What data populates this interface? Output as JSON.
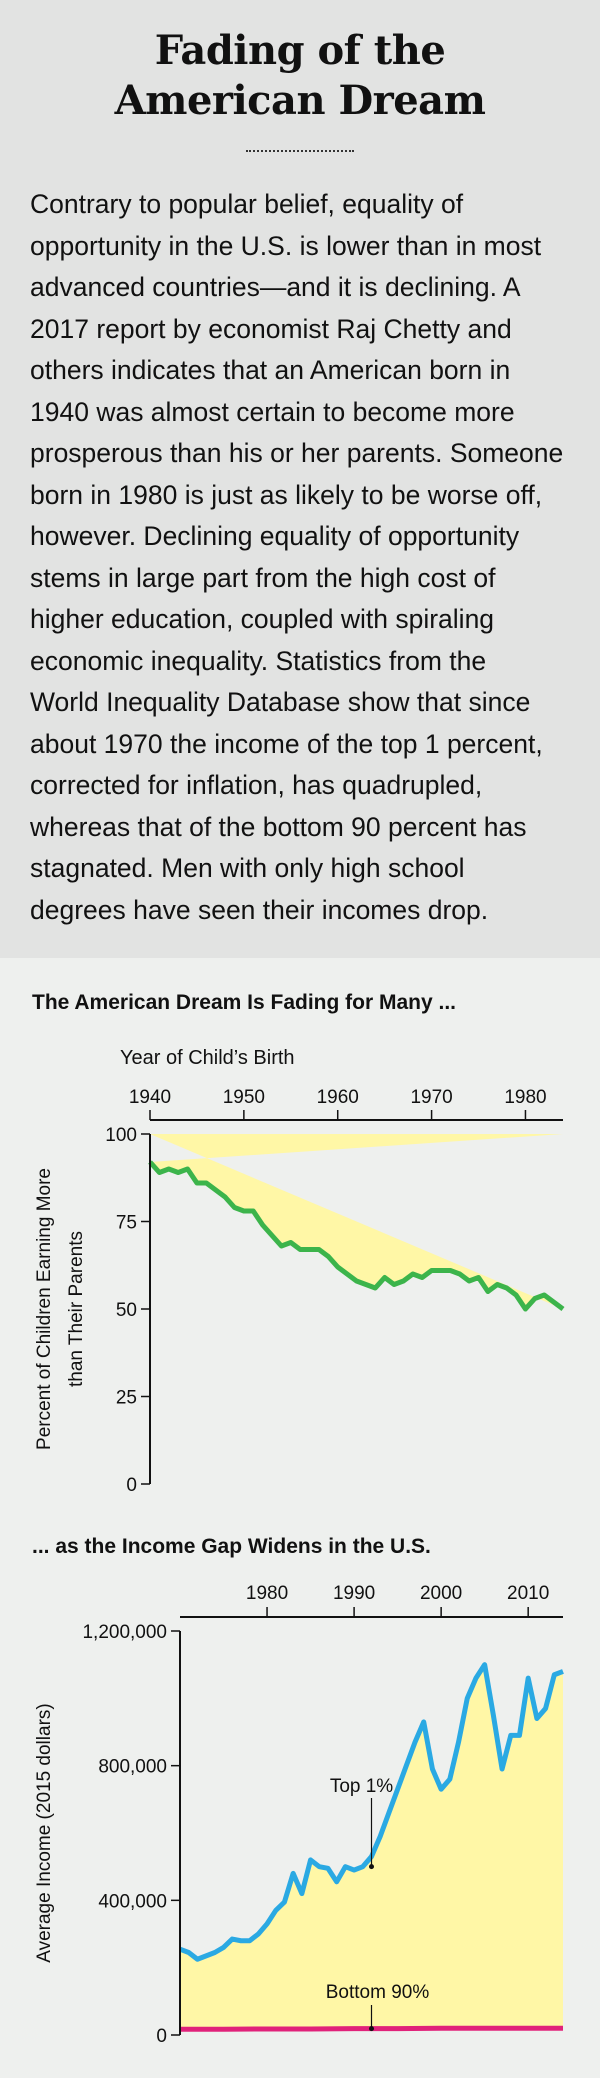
{
  "title_line1": "Fading of the",
  "title_line2": "American Dream",
  "body_lines": [
    "Contrary to popular belief, equality of",
    "opportunity in the U.S. is lower than in most",
    "advanced countries—and it is declining. A",
    "2017 report by economist Raj Chetty and",
    "others indicates that an American born in",
    "1940 was almost certain to become more",
    "prosperous than his or her parents. Someone",
    "born in 1980 is just as likely to be worse off,",
    "however. Declining equality of opportunity",
    "stems in large part from the high cost of",
    "higher education, coupled with spiraling",
    "economic inequality. Statistics from the",
    "World Inequality Database show that since",
    "about 1970 the income of the top 1 percent,",
    "corrected for inflation, has quadrupled,",
    "whereas that of the bottom 90 percent has",
    "stagnated. Men with only high school",
    "degrees have seen their incomes drop."
  ],
  "colors": {
    "background": "#eef0ee",
    "intro_background": "#e2e3e2",
    "fill": "#fff7a6",
    "line_green": "#3cb44b",
    "line_blue": "#2aa9e3",
    "line_magenta": "#e0227a"
  },
  "chart_data": [
    {
      "type": "area",
      "title": "The American Dream Is Fading for Many ...",
      "xlabel": "Year of Child’s Birth",
      "ylabel_line1": "Percent of Children Earning More",
      "ylabel_line2": "than Their Parents",
      "xlim": [
        1940,
        1984
      ],
      "ylim": [
        0,
        100
      ],
      "x_ticks": [
        1940,
        1950,
        1960,
        1970,
        1980
      ],
      "y_ticks": [
        0,
        25,
        50,
        75,
        100
      ],
      "x_tick_labels": [
        "1940",
        "1950",
        "1960",
        "1970",
        "1980"
      ],
      "y_tick_labels": [
        "0",
        "25",
        "50",
        "75",
        "100"
      ],
      "grid": false,
      "series": [
        {
          "x": [
            1940,
            1941,
            1942,
            1943,
            1944,
            1945,
            1946,
            1947,
            1948,
            1949,
            1950,
            1951,
            1952,
            1953,
            1954,
            1955,
            1956,
            1957,
            1958,
            1959,
            1960,
            1961,
            1962,
            1963,
            1964,
            1965,
            1966,
            1967,
            1968,
            1969,
            1970,
            1971,
            1972,
            1973,
            1974,
            1975,
            1976,
            1977,
            1978,
            1979,
            1980,
            1981,
            1982,
            1983,
            1984
          ],
          "values": [
            92,
            89,
            90,
            89,
            90,
            86,
            86,
            84,
            82,
            79,
            78,
            78,
            74,
            71,
            68,
            69,
            67,
            67,
            67,
            65,
            62,
            60,
            58,
            57,
            56,
            59,
            57,
            58,
            60,
            59,
            61,
            61,
            61,
            60,
            58,
            59,
            55,
            57,
            56,
            54,
            50,
            53,
            54,
            52,
            50
          ]
        }
      ]
    },
    {
      "type": "area",
      "title": "... as the Income Gap Widens in the U.S.",
      "ylabel": "Average Income (2015 dollars)",
      "xlim": [
        1970,
        2014
      ],
      "ylim": [
        0,
        1200000
      ],
      "x_ticks": [
        1980,
        1990,
        2000,
        2010
      ],
      "y_ticks": [
        0,
        400000,
        800000,
        1200000
      ],
      "x_tick_labels": [
        "1980",
        "1990",
        "2000",
        "2010"
      ],
      "y_tick_labels": [
        "0",
        "400,000",
        "800,000",
        "1,200,000"
      ],
      "grid": false,
      "series": [
        {
          "name": "Top 1%",
          "x": [
            1970,
            1971,
            1972,
            1973,
            1974,
            1975,
            1976,
            1977,
            1978,
            1979,
            1980,
            1981,
            1982,
            1983,
            1984,
            1985,
            1986,
            1987,
            1988,
            1989,
            1990,
            1991,
            1992,
            1993,
            1994,
            1995,
            1996,
            1997,
            1998,
            1999,
            2000,
            2001,
            2002,
            2003,
            2004,
            2005,
            2006,
            2007,
            2008,
            2009,
            2010,
            2011,
            2012,
            2013,
            2014
          ],
          "values": [
            255000,
            245000,
            225000,
            235000,
            245000,
            260000,
            285000,
            280000,
            280000,
            300000,
            330000,
            370000,
            395000,
            480000,
            420000,
            520000,
            500000,
            495000,
            455000,
            500000,
            490000,
            500000,
            530000,
            590000,
            660000,
            730000,
            800000,
            870000,
            930000,
            790000,
            730000,
            760000,
            870000,
            1000000,
            1060000,
            1100000,
            950000,
            790000,
            890000,
            890000,
            1060000,
            940000,
            970000,
            1070000,
            1080000
          ]
        },
        {
          "name": "Bottom 90%",
          "x": [
            1970,
            1975,
            1980,
            1985,
            1990,
            1995,
            2000,
            2005,
            2010,
            2014
          ],
          "values": [
            17000,
            17000,
            18000,
            18000,
            19000,
            19000,
            20000,
            20000,
            20000,
            20000
          ]
        }
      ]
    }
  ]
}
